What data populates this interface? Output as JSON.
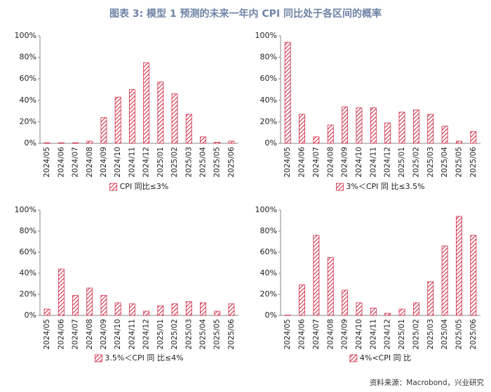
{
  "title": "图表 3: 模型 1 预测的未来一年内 CPI 同比处于各区间的概率",
  "source": "资料来源：Macrobond，兴业研究",
  "chart_data": [
    {
      "type": "bar",
      "categories": [
        "2024/05",
        "2024/06",
        "2024/07",
        "2024/08",
        "2024/09",
        "2024/10",
        "2024/11",
        "2024/12",
        "2025/01",
        "2025/02",
        "2025/03",
        "2025/04",
        "2025/05",
        "2025/06"
      ],
      "series": [
        {
          "name": "CPI 同比≤3%",
          "color": "#d0304a",
          "values": [
            0.5,
            0.5,
            0.5,
            2,
            24,
            43,
            50,
            75,
            57,
            46,
            27,
            6,
            1,
            2
          ]
        }
      ],
      "ylim": [
        0,
        100
      ],
      "yticks": [
        {
          "value": 0,
          "label": "0%"
        },
        {
          "value": 20,
          "label": "20%"
        },
        {
          "value": 40,
          "label": "40%"
        },
        {
          "value": 60,
          "label": "60%"
        },
        {
          "value": 80,
          "label": "80%"
        },
        {
          "value": 100,
          "label": "100%"
        }
      ],
      "legend": "bottom"
    },
    {
      "type": "bar",
      "categories": [
        "2024/05",
        "2024/06",
        "2024/07",
        "2024/08",
        "2024/09",
        "2024/10",
        "2024/11",
        "2024/12",
        "2025/01",
        "2025/02",
        "2025/03",
        "2025/04",
        "2025/05",
        "2025/06"
      ],
      "series": [
        {
          "name": "3%＜CPI 同 比≤3.5%",
          "color": "#d0304a",
          "values": [
            94,
            27,
            6,
            17,
            34,
            33,
            33,
            19,
            29,
            31,
            27,
            16,
            2,
            11
          ]
        }
      ],
      "ylim": [
        0,
        100
      ],
      "yticks": [
        {
          "value": 0,
          "label": "0%"
        },
        {
          "value": 20,
          "label": "20%"
        },
        {
          "value": 40,
          "label": "40%"
        },
        {
          "value": 60,
          "label": "60%"
        },
        {
          "value": 80,
          "label": "80%"
        },
        {
          "value": 100,
          "label": "100%"
        }
      ],
      "legend": "bottom"
    },
    {
      "type": "bar",
      "categories": [
        "2024/05",
        "2024/06",
        "2024/07",
        "2024/08",
        "2024/09",
        "2024/10",
        "2024/11",
        "2024/12",
        "2025/01",
        "2025/02",
        "2025/03",
        "2025/04",
        "2025/05",
        "2025/06"
      ],
      "series": [
        {
          "name": "3.5%＜CPI 同 比≤4%",
          "color": "#d0304a",
          "values": [
            6,
            44,
            19,
            26,
            19,
            12,
            11,
            4,
            9,
            11,
            13,
            12,
            4,
            11
          ]
        }
      ],
      "ylim": [
        0,
        100
      ],
      "yticks": [
        {
          "value": 0,
          "label": "0%"
        },
        {
          "value": 20,
          "label": "20%"
        },
        {
          "value": 40,
          "label": "40%"
        },
        {
          "value": 60,
          "label": "60%"
        },
        {
          "value": 80,
          "label": "80%"
        },
        {
          "value": 100,
          "label": "100%"
        }
      ],
      "legend": "bottom"
    },
    {
      "type": "bar",
      "categories": [
        "2024/05",
        "2024/06",
        "2024/07",
        "2024/08",
        "2024/09",
        "2024/10",
        "2024/11",
        "2024/12",
        "2025/01",
        "2025/02",
        "2025/03",
        "2025/04",
        "2025/05",
        "2025/06"
      ],
      "series": [
        {
          "name": "4%<CPI 同 比",
          "color": "#d0304a",
          "values": [
            0.3,
            29,
            76,
            55,
            24,
            12,
            7,
            2,
            6,
            12,
            32,
            66,
            94,
            76
          ]
        }
      ],
      "ylim": [
        0,
        100
      ],
      "yticks": [
        {
          "value": 0,
          "label": "0%"
        },
        {
          "value": 20,
          "label": "20%"
        },
        {
          "value": 40,
          "label": "40%"
        },
        {
          "value": 60,
          "label": "60%"
        },
        {
          "value": 80,
          "label": "80%"
        },
        {
          "value": 100,
          "label": "100%"
        }
      ],
      "legend": "bottom"
    }
  ]
}
